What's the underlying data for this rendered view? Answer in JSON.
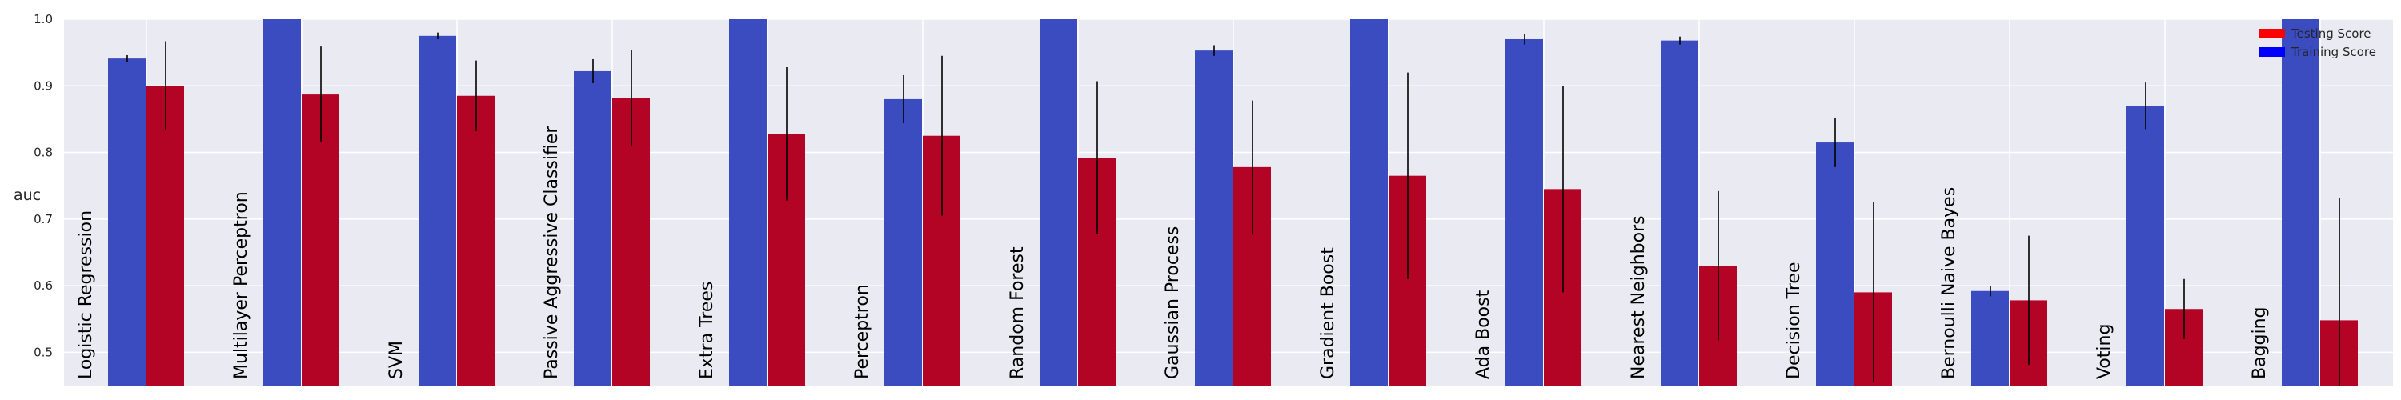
{
  "chart_data": {
    "type": "bar",
    "ylabel": "auc",
    "ylim": [
      0.45,
      1.0
    ],
    "yticks": [
      0.5,
      0.6,
      0.7,
      0.8,
      0.9,
      1.0
    ],
    "tick_labels": [
      "0.5",
      "0.6",
      "0.7",
      "0.8",
      "0.9",
      "1.0"
    ],
    "grid": true,
    "legend_position": "top-right",
    "categories": [
      "Logistic Regression",
      "Multilayer Perceptron",
      "SVM",
      "Passive Aggressive Classifier",
      "Extra Trees",
      "Perceptron",
      "Random Forest",
      "Gaussian Process",
      "Gradient Boost",
      "Ada Boost",
      "Nearest Neighbors",
      "Decision Tree",
      "Bernoulli Naive Bayes",
      "Voting",
      "Bagging"
    ],
    "series": [
      {
        "name": "Training Score",
        "color": "#3b4cc0",
        "values": [
          0.941,
          1.0,
          0.975,
          0.922,
          1.0,
          0.88,
          1.0,
          0.953,
          1.0,
          0.97,
          0.968,
          0.815,
          0.592,
          0.87,
          1.0
        ],
        "errors": [
          0.005,
          0.0,
          0.005,
          0.018,
          0.0,
          0.036,
          0.0,
          0.008,
          0.0,
          0.008,
          0.006,
          0.037,
          0.008,
          0.035,
          0.0
        ]
      },
      {
        "name": "Testing Score",
        "color": "#b40426",
        "values": [
          0.9,
          0.887,
          0.885,
          0.882,
          0.828,
          0.825,
          0.792,
          0.778,
          0.765,
          0.745,
          0.63,
          0.59,
          0.578,
          0.565,
          0.548
        ],
        "errors": [
          0.067,
          0.072,
          0.053,
          0.072,
          0.1,
          0.12,
          0.115,
          0.1,
          0.155,
          0.155,
          0.112,
          0.135,
          0.097,
          0.045,
          0.183
        ]
      }
    ],
    "legend": [
      {
        "label": "Testing Score",
        "color": "#ff0000"
      },
      {
        "label": "Training Score",
        "color": "#0000ff"
      }
    ]
  }
}
